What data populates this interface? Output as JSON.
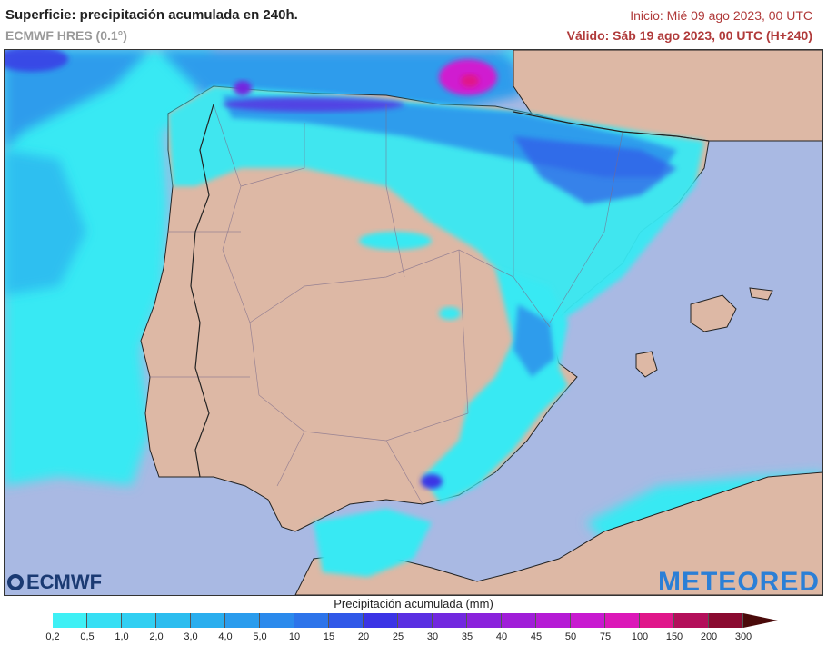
{
  "header": {
    "title": "Superficie: precipitación acumulada en 240h.",
    "model": "ECMWF HRES (0.1°)",
    "init": "Inicio: Mié 09 ago 2023, 00 UTC",
    "valid": "Válido: Sáb 19 ago 2023, 00 UTC (H+240)"
  },
  "logos": {
    "left": "ECMWF",
    "right": "METEORED"
  },
  "legend": {
    "title": "Precipitación acumulada (mm)",
    "ticks": [
      "0,2",
      "0,5",
      "1,0",
      "2,0",
      "3,0",
      "4,0",
      "5,0",
      "10",
      "15",
      "20",
      "25",
      "30",
      "35",
      "40",
      "45",
      "50",
      "75",
      "100",
      "150",
      "200",
      "300"
    ],
    "colors": [
      "#3ef0f5",
      "#36dff4",
      "#31cff2",
      "#2cbdef",
      "#2aaeee",
      "#2a9ced",
      "#2b8aec",
      "#2d74ea",
      "#3058e8",
      "#3b34e5",
      "#5a2fe2",
      "#7228df",
      "#8a22dc",
      "#a01ed8",
      "#b51bd5",
      "#c81ad0",
      "#db18b8",
      "#e0168a",
      "#b30f5a",
      "#8a0a30",
      "#5a0a0a"
    ],
    "arrow_color": "#4a0a0a"
  },
  "map": {
    "sea_color": "#a9b9e3",
    "land_color": "#ddb8a5",
    "rain_light": "#39e9f3",
    "rain_mid": "#2d9cec",
    "rain_heavy": "#3f3ee4",
    "rain_extreme": "#d01ad0"
  }
}
